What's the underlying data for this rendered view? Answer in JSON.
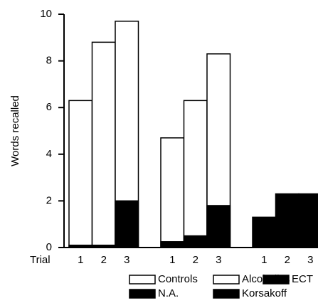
{
  "chart_data": {
    "type": "bar",
    "barmode": "overlay",
    "y_label": "Words recalled",
    "x_label": "Trial",
    "categories": [
      "1",
      "2",
      "3",
      "1",
      "2",
      "3",
      "1",
      "2",
      "3"
    ],
    "series": [
      {
        "name": "Controls",
        "color": "#ffffff",
        "values": [
          6.3,
          8.8,
          9.7,
          null,
          null,
          null,
          null,
          null,
          null
        ]
      },
      {
        "name": "Alcoholics",
        "color": "#ffffff",
        "values": [
          null,
          null,
          null,
          4.7,
          6.3,
          8.3,
          null,
          null,
          null
        ]
      },
      {
        "name": "ECT",
        "color": "#000000",
        "values": [
          null,
          null,
          null,
          null,
          null,
          null,
          1.3,
          2.3,
          2.3
        ]
      },
      {
        "name": "N.A.",
        "color": "#000000",
        "values": [
          0.1,
          0.1,
          2.0,
          null,
          null,
          null,
          null,
          null,
          null
        ]
      },
      {
        "name": "Korsakoff",
        "color": "#000000",
        "values": [
          null,
          null,
          null,
          0.25,
          0.5,
          1.8,
          null,
          null,
          null
        ]
      }
    ],
    "ylim": [
      0,
      10
    ],
    "yticks": [
      0,
      2,
      4,
      6,
      8,
      10
    ],
    "grid": false
  }
}
